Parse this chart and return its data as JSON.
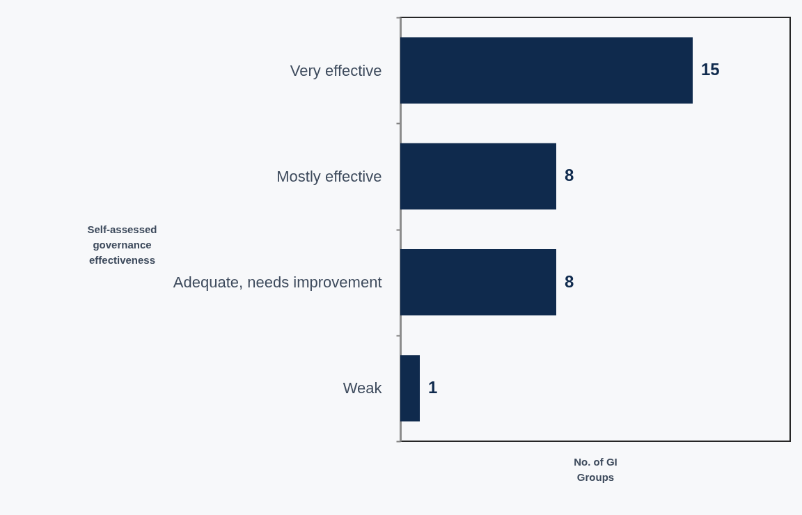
{
  "chart_data": {
    "type": "bar",
    "orientation": "horizontal",
    "categories": [
      "Very effective",
      "Mostly effective",
      "Adequate, needs improvement",
      "Weak"
    ],
    "values": [
      15,
      8,
      8,
      1
    ],
    "color": "#0f2a4d",
    "xlim": [
      0,
      20
    ],
    "tick_labels": "y",
    "data_labels": true,
    "xlabel": "No. of GI Groups",
    "ylabel": "Self-assessed governance effectiveness"
  }
}
